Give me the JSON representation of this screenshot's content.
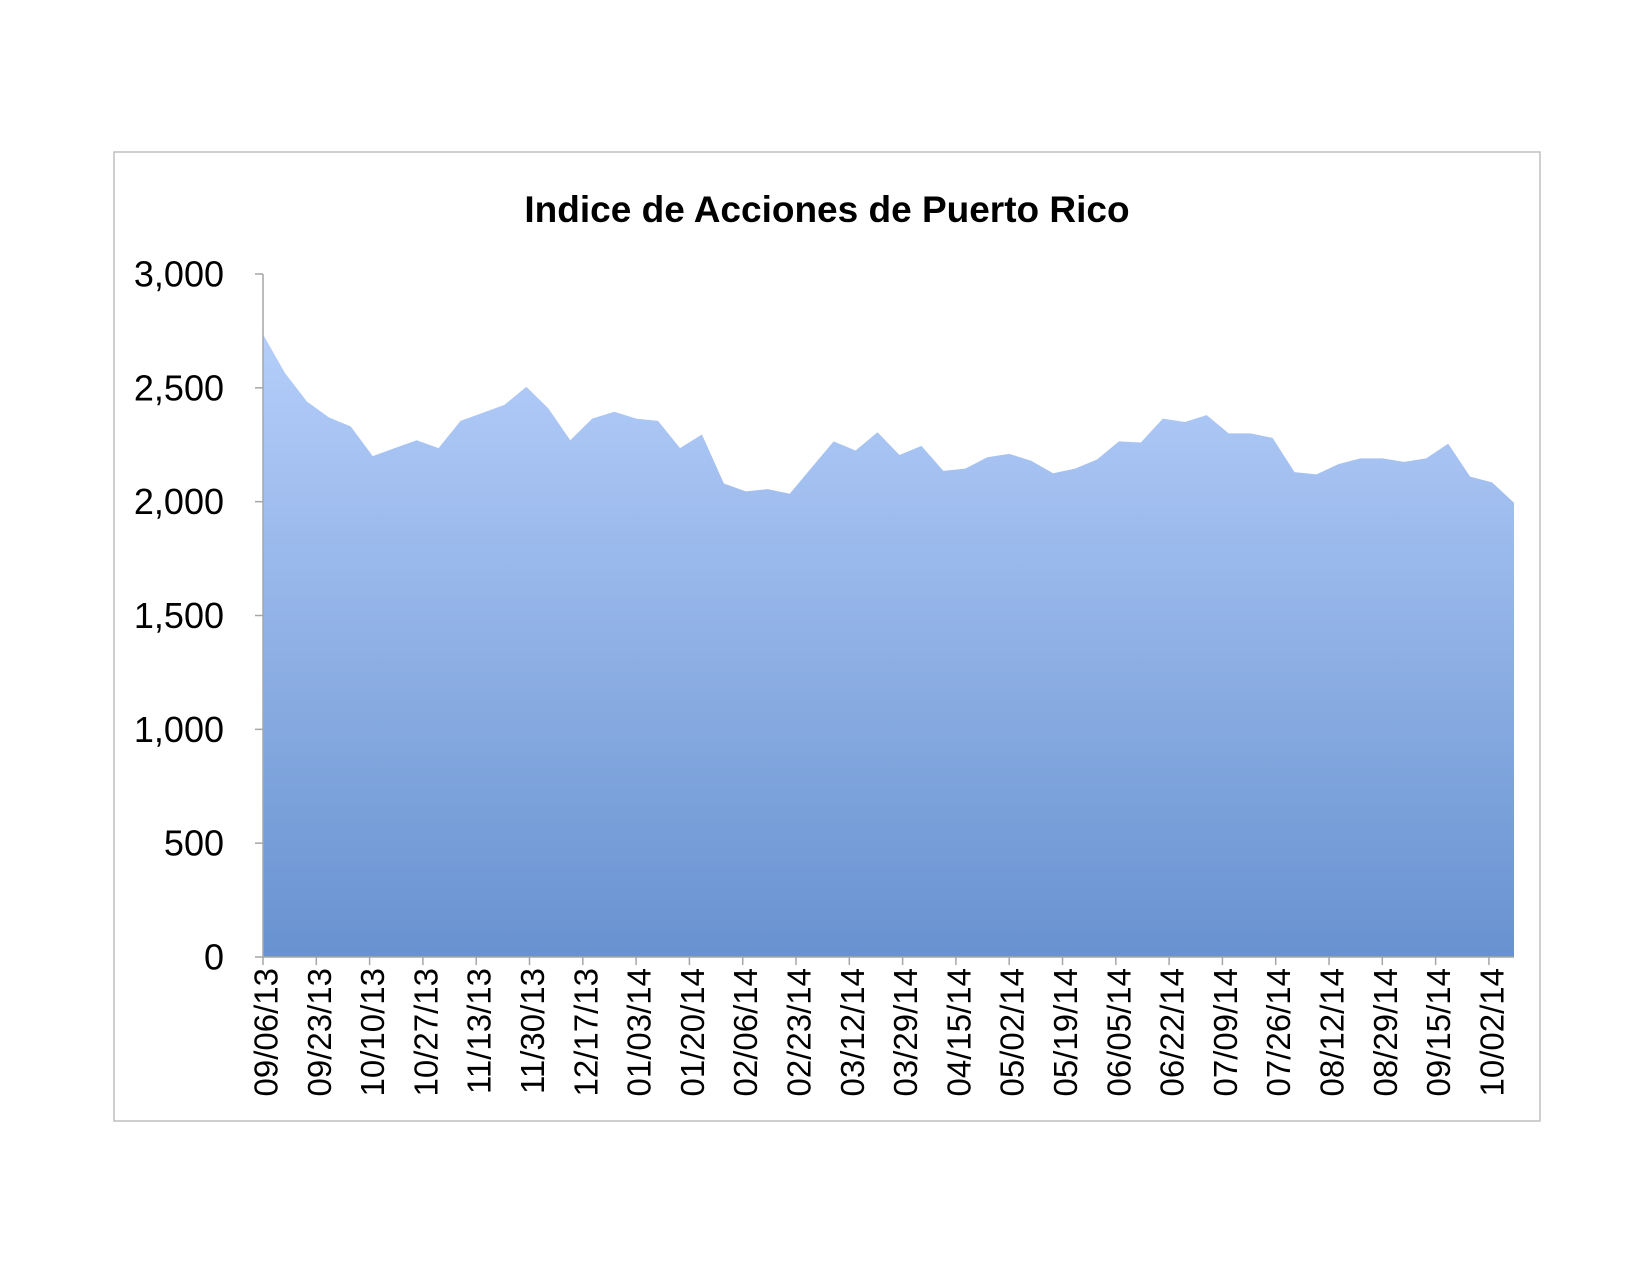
{
  "chart_data": {
    "type": "area",
    "title": "Indice de Acciones de Puerto Rico",
    "xlabel": "",
    "ylabel": "",
    "ylim": [
      0,
      3000
    ],
    "xlim": [
      "09/06/13",
      "10/10/14"
    ],
    "yticks": [
      "0",
      "500",
      "1,000",
      "1,500",
      "2,000",
      "2,500",
      "3,000"
    ],
    "xticks": [
      "09/06/13",
      "09/23/13",
      "10/10/13",
      "10/27/13",
      "11/13/13",
      "11/30/13",
      "12/17/13",
      "01/03/14",
      "01/20/14",
      "02/06/14",
      "02/23/14",
      "03/12/14",
      "03/29/14",
      "04/15/14",
      "05/02/14",
      "05/19/14",
      "06/05/14",
      "06/22/14",
      "07/09/14",
      "07/26/14",
      "08/12/14",
      "08/29/14",
      "09/15/14",
      "10/02/14"
    ],
    "x": [
      "09/06/13",
      "09/13/13",
      "09/20/13",
      "09/27/13",
      "10/04/13",
      "10/11/13",
      "10/18/13",
      "10/25/13",
      "11/01/13",
      "11/08/13",
      "11/15/13",
      "11/22/13",
      "11/29/13",
      "12/06/13",
      "12/13/13",
      "12/20/13",
      "12/27/13",
      "01/03/14",
      "01/10/14",
      "01/17/14",
      "01/24/14",
      "01/31/14",
      "02/07/14",
      "02/14/14",
      "02/21/14",
      "02/28/14",
      "03/07/14",
      "03/14/14",
      "03/21/14",
      "03/28/14",
      "04/04/14",
      "04/11/14",
      "04/18/14",
      "04/25/14",
      "05/02/14",
      "05/09/14",
      "05/16/14",
      "05/23/14",
      "05/30/14",
      "06/06/14",
      "06/13/14",
      "06/20/14",
      "06/27/14",
      "07/04/14",
      "07/11/14",
      "07/18/14",
      "07/25/14",
      "08/01/14",
      "08/08/14",
      "08/15/14",
      "08/22/14",
      "08/29/14",
      "09/05/14",
      "09/12/14",
      "09/19/14",
      "09/26/14",
      "10/03/14",
      "10/10/14"
    ],
    "values": [
      2735,
      2565,
      2440,
      2370,
      2330,
      2200,
      2235,
      2270,
      2235,
      2355,
      2390,
      2425,
      2505,
      2410,
      2270,
      2365,
      2395,
      2365,
      2355,
      2235,
      2295,
      2080,
      2045,
      2055,
      2035,
      2150,
      2265,
      2225,
      2305,
      2205,
      2245,
      2135,
      2145,
      2195,
      2210,
      2180,
      2125,
      2145,
      2185,
      2265,
      2260,
      2365,
      2350,
      2380,
      2300,
      2300,
      2280,
      2130,
      2120,
      2165,
      2190,
      2190,
      2175,
      2190,
      2255,
      2110,
      2085,
      1995
    ],
    "grid": false,
    "legend": "none",
    "colors": {
      "fill_top": "#b5cefa",
      "fill_bottom": "#6892d0",
      "axis": "#a6a6a6",
      "frame": "#bfbfbf"
    }
  }
}
